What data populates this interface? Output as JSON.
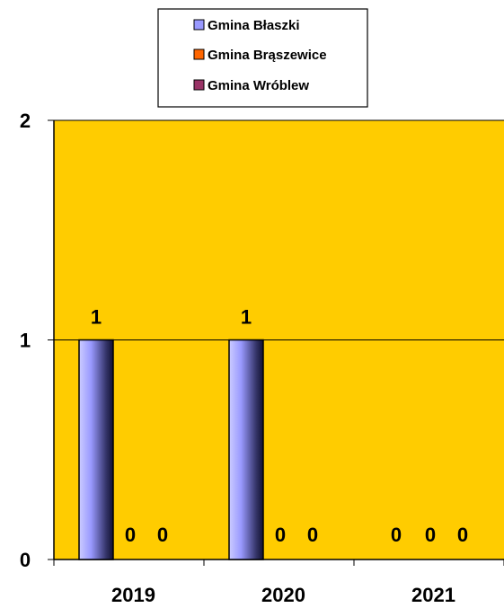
{
  "chart_data": {
    "type": "bar",
    "categories": [
      "2019",
      "2020",
      "2021"
    ],
    "series": [
      {
        "name": "Gmina Błaszki",
        "values": [
          1,
          1,
          0
        ],
        "color": "#9999FF"
      },
      {
        "name": "Gmina Brąszewice",
        "values": [
          0,
          0,
          0
        ],
        "color": "#FF6600"
      },
      {
        "name": "Gmina Wróblew",
        "values": [
          0,
          0,
          0
        ],
        "color": "#993366"
      }
    ],
    "title": "",
    "xlabel": "",
    "ylabel": "",
    "ylim": [
      0,
      2
    ],
    "yticks": [
      "0",
      "1",
      "2"
    ],
    "grid": true,
    "legend_position": "top-center",
    "plot_background": "#FFCC00"
  }
}
